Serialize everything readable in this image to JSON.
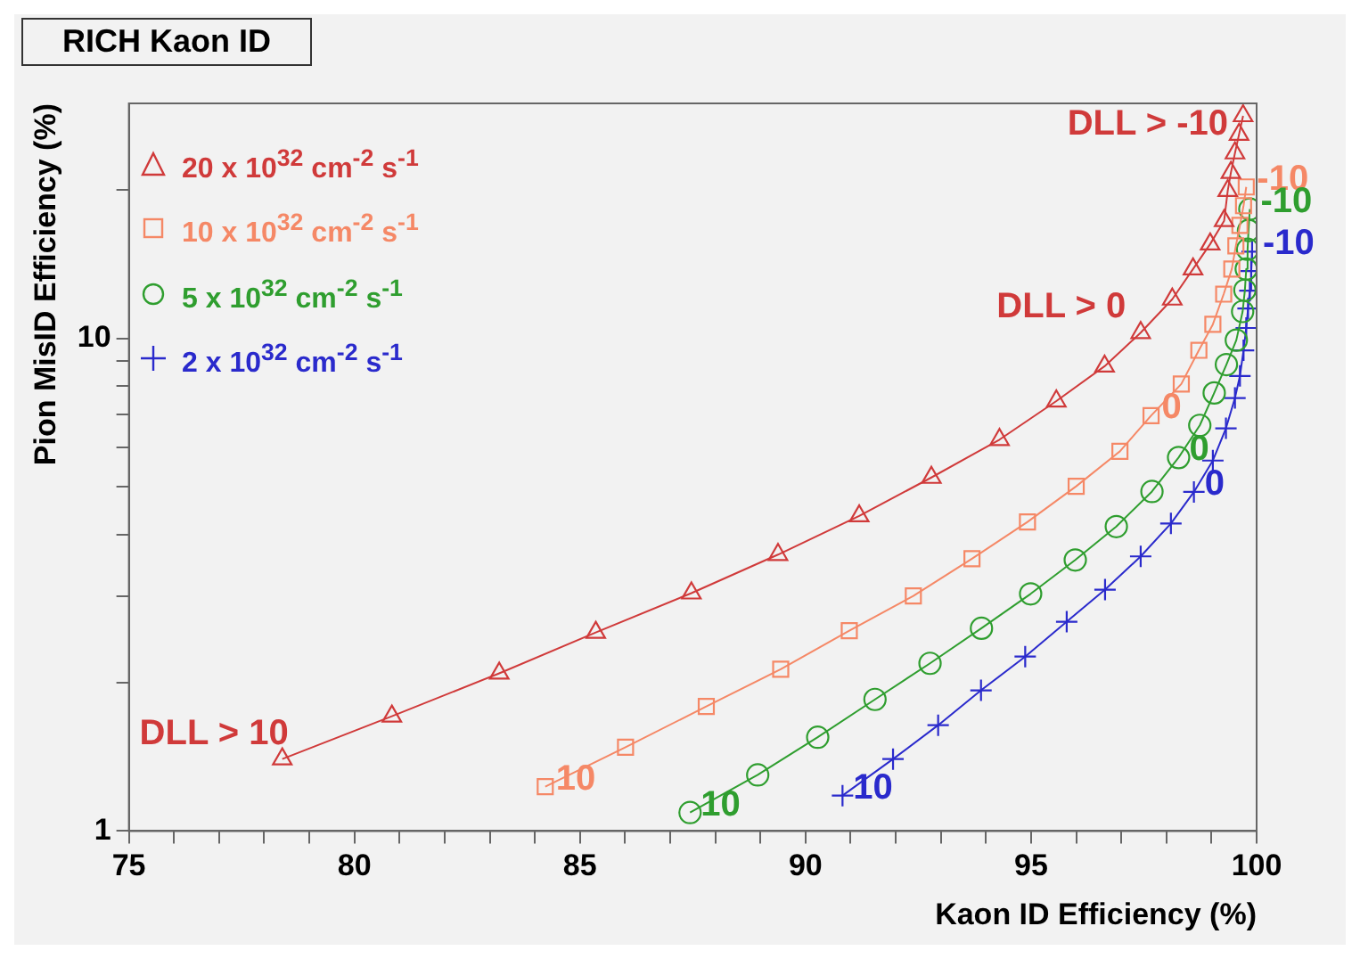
{
  "chart_data": {
    "type": "line",
    "title": "RICH Kaon ID",
    "xlabel": "Kaon ID Efficiency (%)",
    "ylabel": "Pion MisID Efficiency (%)",
    "xlim": [
      75,
      100
    ],
    "xticks": [
      75,
      {
        "value": 76,
        "label": null
      },
      {
        "value": 77,
        "label": null
      },
      {
        "value": 78,
        "label": null
      },
      {
        "value": 79,
        "label": null
      },
      80,
      {
        "value": 81,
        "label": null
      },
      {
        "value": 82,
        "label": null
      },
      {
        "value": 83,
        "label": null
      },
      {
        "value": 84,
        "label": null
      },
      85,
      {
        "value": 86,
        "label": null
      },
      {
        "value": 87,
        "label": null
      },
      {
        "value": 88,
        "label": null
      },
      {
        "value": 89,
        "label": null
      },
      90,
      {
        "value": 91,
        "label": null
      },
      {
        "value": 92,
        "label": null
      },
      {
        "value": 93,
        "label": null
      },
      {
        "value": 94,
        "label": null
      },
      95,
      {
        "value": 96,
        "label": null
      },
      {
        "value": 97,
        "label": null
      },
      {
        "value": 98,
        "label": null
      },
      {
        "value": 99,
        "label": null
      },
      100
    ],
    "ylim": [
      1,
      30
    ],
    "yticks": [
      1,
      {
        "value": 2,
        "label": null
      },
      {
        "value": 3,
        "label": null
      },
      {
        "value": 4,
        "label": null
      },
      {
        "value": 5,
        "label": null
      },
      {
        "value": 6,
        "label": null
      },
      {
        "value": 7,
        "label": null
      },
      {
        "value": 8,
        "label": null
      },
      {
        "value": 9,
        "label": null
      },
      10,
      {
        "value": 20,
        "label": null
      }
    ],
    "log": "y",
    "grid": false,
    "legend": "top left",
    "annotations": [
      {
        "text": "DLL > 10",
        "x": 78.4,
        "y": 1.4
      },
      {
        "text": "DLL > 0",
        "x": 97.43,
        "y": 10.27
      },
      {
        "text": "DLL > -10",
        "x": 99.7,
        "y": 28.3
      },
      {
        "text": "10",
        "x": 84.23,
        "y": 1.23
      },
      {
        "text": "0",
        "x": 97.66,
        "y": 6.97
      },
      {
        "text": "-10",
        "x": 99.77,
        "y": 20.3
      },
      {
        "text": "10",
        "x": 87.44,
        "y": 1.09
      },
      {
        "text": "0",
        "x": 98.27,
        "y": 5.73
      },
      {
        "text": "-10",
        "x": 99.85,
        "y": 18.3
      },
      {
        "text": "10",
        "x": 90.82,
        "y": 1.18
      },
      {
        "text": "0",
        "x": 98.61,
        "y": 4.88
      },
      {
        "text": "-10",
        "x": 99.9,
        "y": 15.0
      }
    ],
    "series": [
      {
        "name": "20 x 10$^{32}$ cm$^{-2}$ s$^{-1}$",
        "color": "#d03a3a",
        "marker": "triangle",
        "x": [
          78.4,
          80.83,
          83.21,
          85.35,
          87.47,
          89.39,
          91.19,
          92.79,
          94.3,
          95.56,
          96.63,
          97.43,
          98.13,
          98.59,
          98.97,
          99.28,
          99.36,
          99.43,
          99.52,
          99.61,
          99.7
        ],
        "values": [
          1.4,
          1.71,
          2.09,
          2.53,
          3.04,
          3.64,
          4.36,
          5.22,
          6.23,
          7.46,
          8.78,
          10.27,
          12.01,
          13.83,
          15.54,
          17.33,
          19.95,
          21.71,
          23.78,
          25.94,
          28.3
        ]
      },
      {
        "name": "10 x 10$^{32}$ cm$^{-2}$ s$^{-1}$",
        "color": "#f58866",
        "marker": "square",
        "x": [
          84.23,
          86.01,
          87.8,
          89.45,
          90.97,
          92.39,
          93.69,
          94.92,
          96.0,
          96.97,
          97.66,
          98.33,
          98.72,
          99.03,
          99.27,
          99.45,
          99.54,
          99.63,
          99.71,
          99.77
        ],
        "values": [
          1.23,
          1.48,
          1.79,
          2.13,
          2.55,
          3.0,
          3.57,
          4.24,
          5.01,
          5.9,
          6.97,
          8.08,
          9.46,
          10.68,
          12.3,
          13.83,
          15.41,
          16.96,
          18.6,
          20.3
        ]
      },
      {
        "name": "5 x 10$^{32}$ cm$^{-2}$ s$^{-1}$",
        "color": "#2f9e2f",
        "marker": "circle",
        "x": [
          87.44,
          88.94,
          90.27,
          91.54,
          92.76,
          93.9,
          94.99,
          95.98,
          96.89,
          97.68,
          98.27,
          98.74,
          99.06,
          99.33,
          99.55,
          99.69,
          99.74,
          99.77,
          99.8,
          99.82,
          99.85
        ],
        "values": [
          1.09,
          1.3,
          1.55,
          1.85,
          2.19,
          2.58,
          3.03,
          3.55,
          4.15,
          4.89,
          5.73,
          6.66,
          7.75,
          8.85,
          9.92,
          11.34,
          12.53,
          13.83,
          15.17,
          16.56,
          18.3
        ]
      },
      {
        "name": "2 x 10$^{32}$ cm$^{-2}$ s$^{-1}$",
        "color": "#2a2acc",
        "marker": "cross",
        "x": [
          90.82,
          91.94,
          92.94,
          93.89,
          94.87,
          95.79,
          96.64,
          97.43,
          98.1,
          98.61,
          99.03,
          99.32,
          99.52,
          99.63,
          99.71,
          99.77,
          99.81,
          99.85,
          99.88,
          99.9
        ],
        "values": [
          1.18,
          1.4,
          1.64,
          1.93,
          2.26,
          2.66,
          3.09,
          3.61,
          4.21,
          4.88,
          5.65,
          6.57,
          7.57,
          8.39,
          9.46,
          10.5,
          11.5,
          12.5,
          13.7,
          15.0
        ]
      }
    ]
  }
}
